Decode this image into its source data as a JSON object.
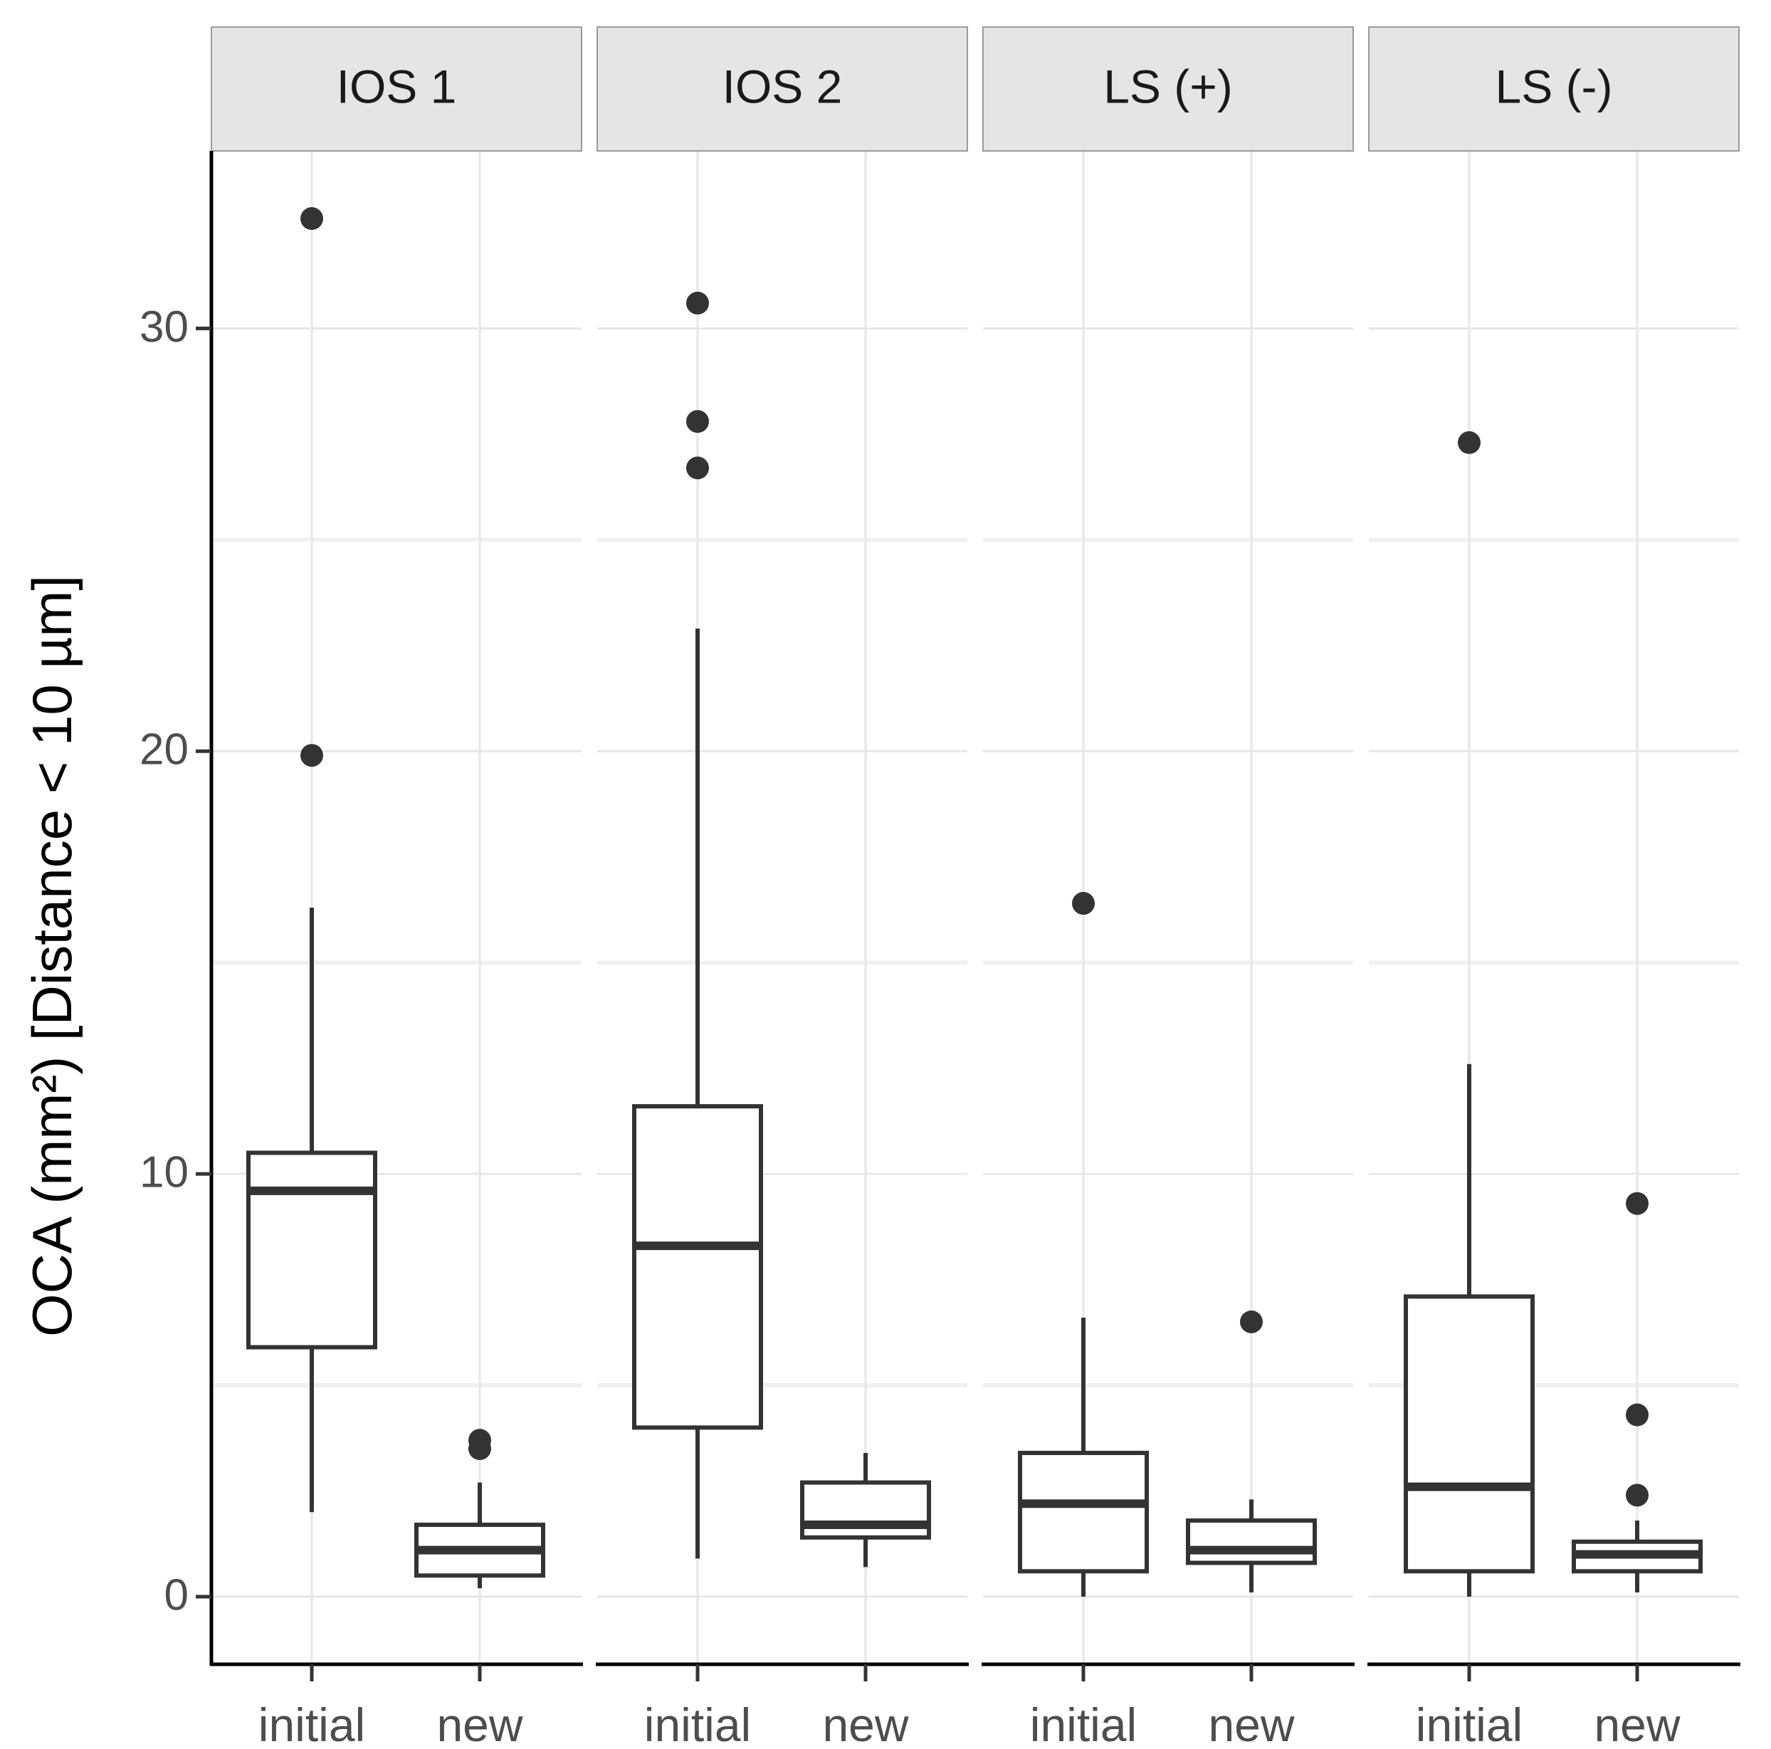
{
  "chart_data": {
    "type": "boxplot",
    "title": "",
    "xlabel": "",
    "ylabel": "OCA (mm²) [Distance < 10 µm]",
    "ylim": [
      -1.6,
      34.2
    ],
    "yticks": [
      0,
      10,
      20,
      30
    ],
    "yticks_minor": [
      5,
      15,
      25
    ],
    "categories": [
      "initial",
      "new"
    ],
    "facets": [
      {
        "label": "IOS 1",
        "boxes": [
          {
            "category": "initial",
            "lower_whisker": 2.0,
            "q1": 5.9,
            "median": 9.6,
            "q3": 10.5,
            "upper_whisker": 16.3,
            "outliers": [
              32.6,
              19.9
            ]
          },
          {
            "category": "new",
            "lower_whisker": 0.2,
            "q1": 0.5,
            "median": 1.1,
            "q3": 1.7,
            "upper_whisker": 2.7,
            "outliers": [
              3.7,
              3.5
            ]
          }
        ]
      },
      {
        "label": "IOS 2",
        "boxes": [
          {
            "category": "initial",
            "lower_whisker": 0.9,
            "q1": 4.0,
            "median": 8.3,
            "q3": 11.6,
            "upper_whisker": 22.9,
            "outliers": [
              30.6,
              27.8,
              26.7
            ]
          },
          {
            "category": "new",
            "lower_whisker": 0.7,
            "q1": 1.4,
            "median": 1.7,
            "q3": 2.7,
            "upper_whisker": 3.4,
            "outliers": []
          }
        ]
      },
      {
        "label": "LS (+)",
        "boxes": [
          {
            "category": "initial",
            "lower_whisker": 0.0,
            "q1": 0.6,
            "median": 2.2,
            "q3": 3.4,
            "upper_whisker": 6.6,
            "outliers": [
              16.4
            ]
          },
          {
            "category": "new",
            "lower_whisker": 0.1,
            "q1": 0.8,
            "median": 1.1,
            "q3": 1.8,
            "upper_whisker": 2.3,
            "outliers": [
              6.5
            ]
          }
        ]
      },
      {
        "label": "LS (-)",
        "boxes": [
          {
            "category": "initial",
            "lower_whisker": 0.0,
            "q1": 0.6,
            "median": 2.6,
            "q3": 7.1,
            "upper_whisker": 12.6,
            "outliers": [
              27.3
            ]
          },
          {
            "category": "new",
            "lower_whisker": 0.1,
            "q1": 0.6,
            "median": 1.0,
            "q3": 1.3,
            "upper_whisker": 1.8,
            "outliers": [
              9.3,
              4.3,
              2.4
            ]
          }
        ]
      }
    ]
  }
}
